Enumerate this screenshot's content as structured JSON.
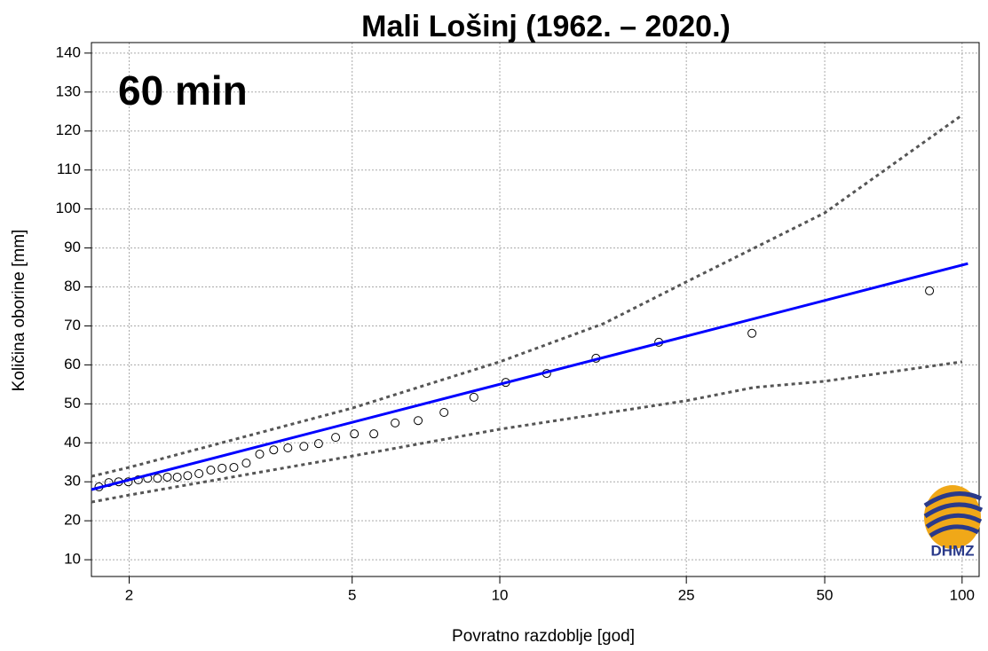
{
  "chart_data": {
    "type": "scatter",
    "title": "Mali Lošinj (1962. – 2020.)",
    "annotation": "60 min",
    "xlabel": "Povratno razdoblje [god]",
    "ylabel": "Količina oborine [mm]",
    "logo_text": "DHMZ",
    "xscale": "gumbel",
    "xlim": [
      1.76,
      109
    ],
    "ylim": [
      5.7,
      142.7
    ],
    "xticks": [
      2,
      5,
      10,
      25,
      50,
      100
    ],
    "yticks": [
      10,
      20,
      30,
      40,
      50,
      60,
      70,
      80,
      90,
      100,
      110,
      120,
      130,
      140
    ],
    "grid": true,
    "series": [
      {
        "kind": "points",
        "color": "#000000",
        "x": [
          1.804,
          1.864,
          1.928,
          1.994,
          2.066,
          2.137,
          2.216,
          2.299,
          2.387,
          2.485,
          2.597,
          2.722,
          2.85,
          2.99,
          3.148,
          3.33,
          3.535,
          3.758,
          4.03,
          4.3,
          4.64,
          5.05,
          5.52,
          6.09,
          6.78,
          7.66,
          8.83,
          10.29,
          12.55,
          15.98,
          21.8,
          34.7,
          84.8
        ],
        "values": [
          28.7,
          29.8,
          30.0,
          30.0,
          30.5,
          30.9,
          30.9,
          31.2,
          31.2,
          31.6,
          32.1,
          33.0,
          33.5,
          33.7,
          34.8,
          37.1,
          38.2,
          38.7,
          39.1,
          39.8,
          41.4,
          42.3,
          42.3,
          45.1,
          45.7,
          47.8,
          51.7,
          55.5,
          57.8,
          61.7,
          65.8,
          68.1,
          79.0
        ]
      },
      {
        "kind": "line",
        "color": "#0000ff",
        "x": [
          1.76,
          103
        ],
        "values": [
          28.0,
          86.0
        ]
      },
      {
        "kind": "dashed",
        "color": "#555555",
        "x": [
          1.76,
          2,
          5,
          10,
          16.6,
          25,
          50,
          100
        ],
        "values": [
          31.4,
          33.7,
          48.9,
          60.8,
          70.6,
          81.3,
          99.0,
          124.1
        ]
      },
      {
        "kind": "dashed",
        "color": "#555555",
        "x": [
          1.76,
          2,
          5,
          10,
          25,
          35,
          50,
          100
        ],
        "values": [
          24.8,
          26.6,
          36.6,
          43.5,
          50.8,
          54.2,
          55.8,
          60.8
        ]
      }
    ]
  }
}
